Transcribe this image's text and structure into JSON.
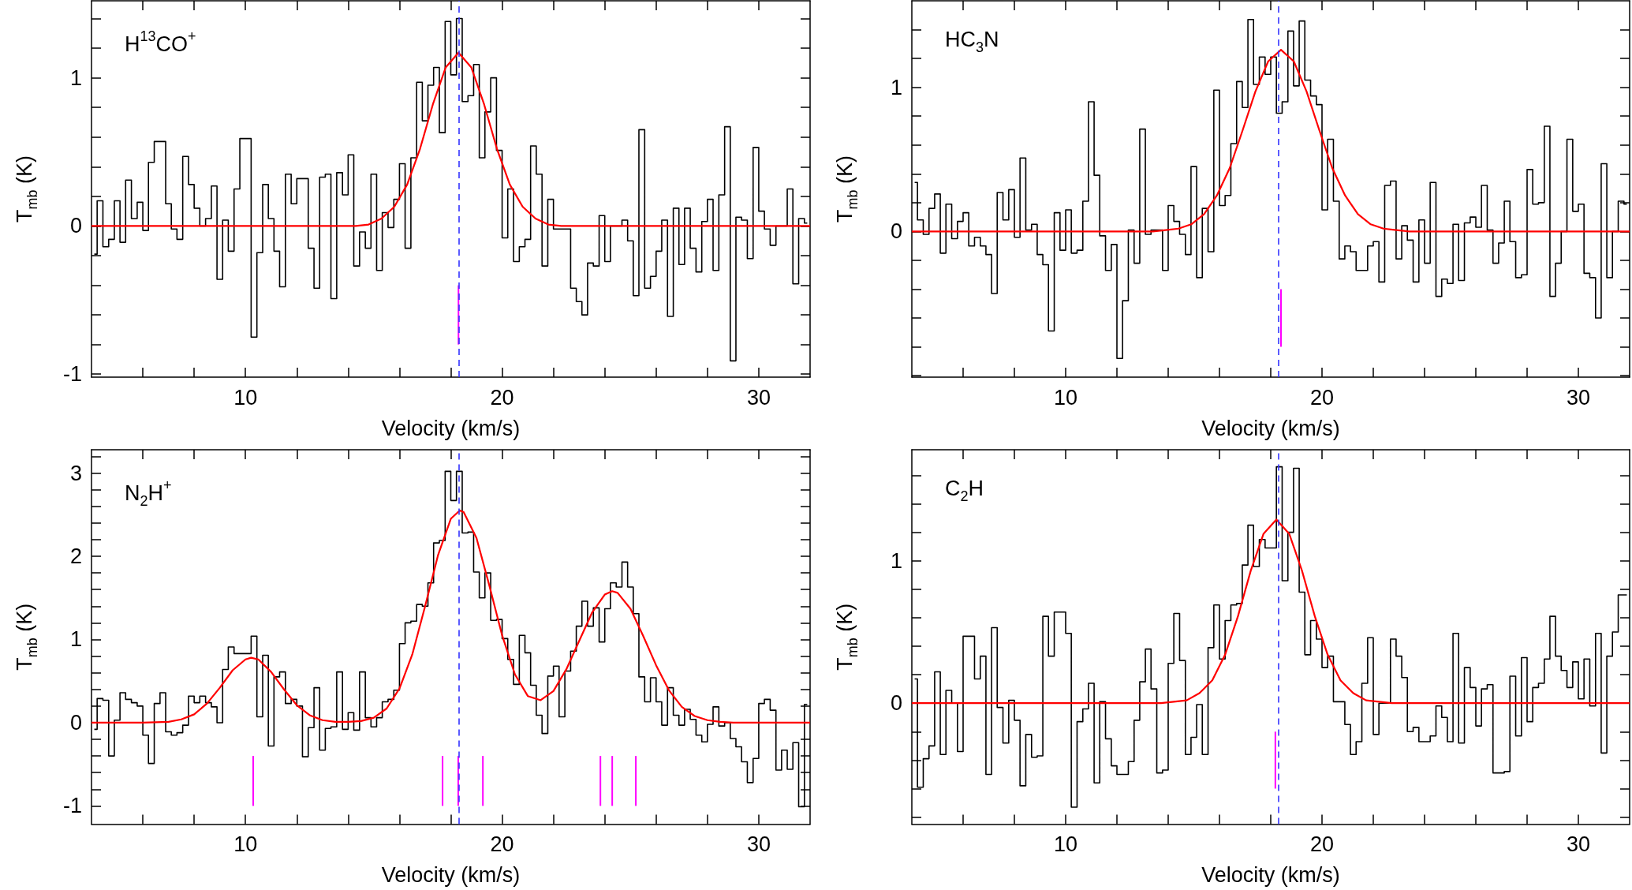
{
  "chart_data": [
    {
      "type": "step",
      "xlabel": "Velocity (km/s)",
      "ylabel": "T$_{mb}$ (K)",
      "annotations": [
        "H$^{13}$CO$^{+}$"
      ],
      "xlim": [
        4,
        32
      ],
      "ylim": [
        -1.02,
        1.52
      ],
      "xticks": [
        {
          "value": 6,
          "label": null
        },
        {
          "value": 8,
          "label": null
        },
        10,
        {
          "value": 12,
          "label": null
        },
        {
          "value": 14,
          "label": null
        },
        {
          "value": 16,
          "label": null
        },
        {
          "value": 18,
          "label": null
        },
        20,
        {
          "value": 22,
          "label": null
        },
        {
          "value": 24,
          "label": null
        },
        {
          "value": 26,
          "label": null
        },
        {
          "value": 28,
          "label": null
        },
        30
      ],
      "yticks": [
        -1,
        {
          "value": -0.8,
          "label": null
        },
        {
          "value": -0.6,
          "label": null
        },
        {
          "value": -0.4,
          "label": null
        },
        {
          "value": -0.2,
          "label": null
        },
        0,
        {
          "value": 0.2,
          "label": null
        },
        {
          "value": 0.4,
          "label": null
        },
        {
          "value": 0.6,
          "label": null
        },
        {
          "value": 0.8,
          "label": null
        },
        1,
        {
          "value": 1.2,
          "label": null
        },
        {
          "value": 1.4,
          "label": null
        }
      ],
      "ref_lines": [
        {
          "axis": "x",
          "value": 18.3,
          "color": "#3333ff",
          "line_style": "dashed"
        }
      ],
      "series": [
        {
          "color": "#000000",
          "x": [
            4.11,
            4.33,
            4.56,
            4.78,
            5.0,
            5.22,
            5.44,
            5.67,
            5.89,
            6.11,
            6.33,
            6.56,
            6.78,
            7.0,
            7.22,
            7.44,
            7.67,
            7.89,
            8.11,
            8.33,
            8.56,
            8.78,
            9.0,
            9.22,
            9.44,
            9.67,
            9.89,
            10.11,
            10.33,
            10.56,
            10.78,
            11.0,
            11.22,
            11.44,
            11.67,
            11.89,
            12.11,
            12.33,
            12.56,
            12.78,
            13.0,
            13.22,
            13.44,
            13.67,
            13.89,
            14.11,
            14.33,
            14.56,
            14.78,
            15.0,
            15.22,
            15.44,
            15.67,
            15.89,
            16.11,
            16.33,
            16.56,
            16.78,
            17.0,
            17.22,
            17.44,
            17.67,
            17.89,
            18.11,
            18.33,
            18.56,
            18.78,
            19.0,
            19.22,
            19.44,
            19.67,
            19.89,
            20.11,
            20.33,
            20.56,
            20.78,
            21.0,
            21.22,
            21.44,
            21.67,
            21.89,
            22.11,
            22.33,
            22.56,
            22.78,
            23.0,
            23.22,
            23.44,
            23.67,
            23.89,
            24.11,
            24.33,
            24.56,
            24.78,
            25.0,
            25.22,
            25.44,
            25.67,
            25.89,
            26.11,
            26.33,
            26.56,
            26.78,
            27.0,
            27.22,
            27.44,
            27.67,
            27.89,
            28.11,
            28.33,
            28.56,
            28.78,
            29.0,
            29.22,
            29.44,
            29.67,
            29.89,
            30.11,
            30.33,
            30.56,
            30.78,
            31.0,
            31.22,
            31.44,
            31.67,
            31.89
          ],
          "values": [
            -0.19,
            0.17,
            -0.14,
            -0.09,
            0.17,
            -0.11,
            0.31,
            0.05,
            0.16,
            -0.03,
            0.43,
            0.57,
            0.57,
            0.15,
            -0.02,
            -0.09,
            0.47,
            0.28,
            0.12,
            0,
            0.05,
            0.27,
            -0.36,
            0.04,
            -0.17,
            0.25,
            0.59,
            0.59,
            -0.75,
            -0.18,
            0.28,
            0.05,
            -0.17,
            -0.41,
            0.35,
            0.15,
            0.32,
            0.32,
            -0.15,
            -0.42,
            0.33,
            0.35,
            -0.49,
            0.36,
            0.21,
            0.48,
            -0.27,
            -0.04,
            -0.15,
            0.35,
            -0.3,
            0.09,
            -0.01,
            0.18,
            0.42,
            -0.15,
            0.46,
            0.97,
            0.71,
            0.95,
            1.07,
            0.63,
            1.38,
            1.02,
            1.4,
            0.84,
            0.88,
            1.09,
            0.46,
            0.77,
            1.0,
            0.51,
            -0.08,
            0.25,
            -0.24,
            -0.14,
            -0.09,
            0.54,
            0.35,
            -0.27,
            0.18,
            -0.02,
            -0.02,
            -0.02,
            -0.42,
            -0.51,
            -0.6,
            -0.25,
            -0.27,
            0.07,
            -0.24,
            0,
            0,
            0.04,
            -0.1,
            -0.47,
            0.65,
            -0.42,
            -0.34,
            -0.17,
            0.04,
            -0.61,
            0.12,
            -0.26,
            0.12,
            -0.15,
            -0.31,
            0.03,
            0.18,
            -0.3,
            0.21,
            0.67,
            -0.91,
            0.06,
            0.04,
            -0.22,
            0.53,
            0.1,
            -0.02,
            -0.13,
            0,
            0,
            0.25,
            -0.39,
            0.05,
            0.02
          ]
        },
        {
          "type": "line",
          "color": "#ff0000",
          "x": [
            4,
            14.3,
            14.8,
            15.3,
            15.8,
            16.3,
            16.8,
            17.3,
            17.8,
            18.3,
            18.8,
            19.3,
            19.8,
            20.3,
            20.8,
            21.3,
            21.8,
            22.3,
            32
          ],
          "values": [
            0,
            0,
            0.01,
            0.05,
            0.13,
            0.28,
            0.52,
            0.82,
            1.07,
            1.17,
            1.07,
            0.82,
            0.52,
            0.28,
            0.13,
            0.05,
            0.01,
            0,
            0
          ]
        },
        {
          "type": "bar",
          "color": "#ff00ff",
          "x": [
            18.3
          ],
          "base": [
            -0.8
          ],
          "values": [
            0.4
          ]
        }
      ]
    },
    {
      "type": "step",
      "xlabel": "Velocity (km/s)",
      "ylabel": "T$_{mb}$ (K)",
      "annotations": [
        "HC$_{3}$N"
      ],
      "xlim": [
        4,
        32
      ],
      "ylim": [
        -1.01,
        1.6
      ],
      "xticks": [
        {
          "value": 6,
          "label": null
        },
        {
          "value": 8,
          "label": null
        },
        10,
        {
          "value": 12,
          "label": null
        },
        {
          "value": 14,
          "label": null
        },
        {
          "value": 16,
          "label": null
        },
        {
          "value": 18,
          "label": null
        },
        20,
        {
          "value": 22,
          "label": null
        },
        {
          "value": 24,
          "label": null
        },
        {
          "value": 26,
          "label": null
        },
        {
          "value": 28,
          "label": null
        },
        30
      ],
      "yticks": [
        {
          "value": -1,
          "label": null
        },
        {
          "value": -0.8,
          "label": null
        },
        {
          "value": -0.6,
          "label": null
        },
        {
          "value": -0.4,
          "label": null
        },
        {
          "value": -0.2,
          "label": null
        },
        0,
        {
          "value": 0.2,
          "label": null
        },
        {
          "value": 0.4,
          "label": null
        },
        {
          "value": 0.6,
          "label": null
        },
        {
          "value": 0.8,
          "label": null
        },
        1,
        {
          "value": 1.2,
          "label": null
        },
        {
          "value": 1.4,
          "label": null
        }
      ],
      "ref_lines": [
        {
          "axis": "x",
          "value": 18.3,
          "color": "#3333ff",
          "line_style": "dashed"
        }
      ],
      "series": [
        {
          "color": "#000000",
          "x": [
            4.11,
            4.33,
            4.56,
            4.78,
            5.0,
            5.22,
            5.44,
            5.67,
            5.89,
            6.11,
            6.33,
            6.56,
            6.78,
            7.0,
            7.22,
            7.44,
            7.67,
            7.89,
            8.11,
            8.33,
            8.56,
            8.78,
            9.0,
            9.22,
            9.44,
            9.67,
            9.89,
            10.11,
            10.33,
            10.56,
            10.78,
            11.0,
            11.22,
            11.44,
            11.67,
            11.89,
            12.11,
            12.33,
            12.56,
            12.78,
            13.0,
            13.22,
            13.44,
            13.67,
            13.89,
            14.11,
            14.33,
            14.56,
            14.78,
            15.0,
            15.22,
            15.44,
            15.67,
            15.89,
            16.11,
            16.33,
            16.56,
            16.78,
            17.0,
            17.22,
            17.44,
            17.67,
            17.89,
            18.11,
            18.33,
            18.56,
            18.78,
            19.0,
            19.22,
            19.44,
            19.67,
            19.89,
            20.11,
            20.33,
            20.56,
            20.78,
            21.0,
            21.22,
            21.44,
            21.67,
            21.89,
            22.11,
            22.33,
            22.56,
            22.78,
            23.0,
            23.22,
            23.44,
            23.67,
            23.89,
            24.11,
            24.33,
            24.56,
            24.78,
            25.0,
            25.22,
            25.44,
            25.67,
            25.89,
            26.11,
            26.33,
            26.56,
            26.78,
            27.0,
            27.22,
            27.44,
            27.67,
            27.89,
            28.11,
            28.33,
            28.56,
            28.78,
            29.0,
            29.22,
            29.44,
            29.67,
            29.89,
            30.11,
            30.33,
            30.56,
            30.78,
            31.0,
            31.22,
            31.44,
            31.67,
            31.89
          ],
          "values": [
            0.34,
            0.08,
            -0.02,
            0.16,
            0.26,
            -0.15,
            0.19,
            -0.05,
            0.07,
            0.13,
            -0.1,
            -0.04,
            -0.1,
            -0.16,
            -0.43,
            0.27,
            0.08,
            0.29,
            -0.04,
            0.51,
            0.01,
            0.05,
            -0.16,
            -0.23,
            -0.69,
            0.13,
            -0.13,
            0.15,
            -0.15,
            -0.13,
            0.21,
            0.9,
            0.39,
            -0.03,
            -0.27,
            -0.09,
            -0.88,
            -0.48,
            0.01,
            -0.22,
            0.71,
            -0.02,
            0.01,
            0.01,
            -0.27,
            0.18,
            0.07,
            -0.02,
            -0.16,
            0.45,
            -0.32,
            0.16,
            -0.14,
            0.98,
            0.18,
            0.25,
            0.61,
            1.04,
            0.86,
            1.47,
            1.02,
            1.21,
            1.09,
            1.21,
            0.82,
            0.9,
            1.39,
            1.01,
            1.46,
            1.05,
            0.94,
            0.88,
            0.15,
            0.64,
            0.21,
            -0.19,
            -0.1,
            -0.14,
            -0.27,
            -0.27,
            -0.1,
            -0.07,
            -0.35,
            0.32,
            0.35,
            -0.19,
            0.04,
            -0.06,
            -0.35,
            0.08,
            -0.22,
            0.34,
            -0.45,
            -0.33,
            -0.36,
            0.05,
            -0.34,
            0.06,
            0.1,
            0.03,
            0.32,
            0.01,
            -0.22,
            -0.08,
            0.21,
            -0.07,
            -0.32,
            -0.3,
            0.43,
            0.19,
            0.2,
            0.73,
            -0.45,
            -0.22,
            0.0,
            0.64,
            0.14,
            0.19,
            -0.29,
            -0.32,
            -0.6,
            0.47,
            -0.32,
            0.0,
            0.21,
            0.19
          ]
        },
        {
          "type": "line",
          "color": "#ff0000",
          "x": [
            4,
            13.4,
            13.9,
            14.4,
            14.9,
            15.4,
            15.9,
            16.4,
            16.9,
            17.4,
            17.9,
            18.4,
            18.9,
            19.4,
            19.9,
            20.4,
            20.9,
            21.4,
            21.9,
            22.4,
            22.9,
            23.4,
            32
          ],
          "values": [
            0,
            0,
            0.01,
            0.02,
            0.05,
            0.12,
            0.25,
            0.44,
            0.7,
            0.97,
            1.18,
            1.26,
            1.18,
            0.97,
            0.7,
            0.44,
            0.25,
            0.12,
            0.05,
            0.02,
            0.01,
            0,
            0
          ]
        },
        {
          "type": "bar",
          "color": "#ff00ff",
          "x": [
            18.4
          ],
          "base": [
            -0.8
          ],
          "values": [
            0.4
          ]
        }
      ]
    },
    {
      "type": "step",
      "xlabel": "Velocity (km/s)",
      "ylabel": "T$_{mb}$ (K)",
      "annotations": [
        "N$_{2}$H$^{+}$"
      ],
      "xlim": [
        4,
        32
      ],
      "ylim": [
        -1.22,
        3.28
      ],
      "xticks": [
        {
          "value": 6,
          "label": null
        },
        {
          "value": 8,
          "label": null
        },
        10,
        {
          "value": 12,
          "label": null
        },
        {
          "value": 14,
          "label": null
        },
        {
          "value": 16,
          "label": null
        },
        {
          "value": 18,
          "label": null
        },
        20,
        {
          "value": 22,
          "label": null
        },
        {
          "value": 24,
          "label": null
        },
        {
          "value": 26,
          "label": null
        },
        {
          "value": 28,
          "label": null
        },
        30
      ],
      "yticks": [
        -1,
        {
          "value": -0.8,
          "label": null
        },
        {
          "value": -0.6,
          "label": null
        },
        {
          "value": -0.4,
          "label": null
        },
        {
          "value": -0.2,
          "label": null
        },
        0,
        {
          "value": 0.2,
          "label": null
        },
        {
          "value": 0.4,
          "label": null
        },
        {
          "value": 0.6,
          "label": null
        },
        {
          "value": 0.8,
          "label": null
        },
        1,
        {
          "value": 1.2,
          "label": null
        },
        {
          "value": 1.4,
          "label": null
        },
        {
          "value": 1.6,
          "label": null
        },
        {
          "value": 1.8,
          "label": null
        },
        2,
        {
          "value": 2.2,
          "label": null
        },
        {
          "value": 2.4,
          "label": null
        },
        {
          "value": 2.6,
          "label": null
        },
        {
          "value": 2.8,
          "label": null
        },
        3,
        {
          "value": 3.2,
          "label": null
        }
      ],
      "ref_lines": [
        {
          "axis": "x",
          "value": 18.3,
          "color": "#3333ff",
          "line_style": "dashed"
        }
      ],
      "series": [
        {
          "color": "#000000",
          "x": [
            4.11,
            4.33,
            4.56,
            4.78,
            5.0,
            5.22,
            5.44,
            5.67,
            5.89,
            6.11,
            6.33,
            6.56,
            6.78,
            7.0,
            7.22,
            7.44,
            7.67,
            7.89,
            8.11,
            8.33,
            8.56,
            8.78,
            9.0,
            9.22,
            9.44,
            9.67,
            9.89,
            10.11,
            10.33,
            10.56,
            10.78,
            11.0,
            11.22,
            11.44,
            11.67,
            11.89,
            12.11,
            12.33,
            12.56,
            12.78,
            13.0,
            13.22,
            13.44,
            13.67,
            13.89,
            14.11,
            14.33,
            14.56,
            14.78,
            15.0,
            15.22,
            15.44,
            15.67,
            15.89,
            16.11,
            16.33,
            16.56,
            16.78,
            17.0,
            17.22,
            17.44,
            17.67,
            17.89,
            18.11,
            18.33,
            18.56,
            18.78,
            19.0,
            19.22,
            19.44,
            19.67,
            19.89,
            20.11,
            20.33,
            20.56,
            20.78,
            21.0,
            21.22,
            21.44,
            21.67,
            21.89,
            22.11,
            22.33,
            22.56,
            22.78,
            23.0,
            23.22,
            23.44,
            23.67,
            23.89,
            24.11,
            24.33,
            24.56,
            24.78,
            25.0,
            25.22,
            25.44,
            25.67,
            25.89,
            26.11,
            26.33,
            26.56,
            26.78,
            27.0,
            27.22,
            27.44,
            27.67,
            27.89,
            28.11,
            28.33,
            28.56,
            28.78,
            29.0,
            29.22,
            29.44,
            29.67,
            29.89,
            30.11,
            30.33,
            30.56,
            30.78,
            31.0,
            31.22,
            31.44,
            31.67,
            31.89
          ],
          "values": [
            -0.08,
            0.29,
            0.27,
            -0.4,
            0.03,
            0.36,
            0.28,
            0.24,
            0.2,
            -0.15,
            -0.49,
            0.23,
            0.36,
            -0.11,
            -0.15,
            -0.12,
            -0.03,
            0.32,
            0.24,
            0.32,
            0.24,
            0.19,
            0.0,
            0.64,
            0.91,
            0.83,
            0.83,
            0.83,
            1.04,
            0.07,
            0.81,
            -0.28,
            0.55,
            0.61,
            0.23,
            0.28,
            0.2,
            -0.41,
            -0.06,
            0.42,
            -0.33,
            -0.07,
            -0.05,
            0.61,
            -0.08,
            0.12,
            -0.09,
            0.61,
            0.06,
            -0.05,
            0.06,
            0.25,
            0.28,
            0.39,
            0.95,
            1.2,
            1.22,
            1.42,
            1.4,
            1.68,
            2.16,
            2.19,
            3.02,
            2.67,
            3.02,
            2.28,
            2.29,
            1.81,
            1.5,
            1.8,
            1.23,
            1.24,
            1.01,
            0.76,
            0.46,
            1.05,
            0.84,
            0.45,
            0.09,
            -0.13,
            0.56,
            0.68,
            0.07,
            0.62,
            0.86,
            1.16,
            1.46,
            1.16,
            1.38,
            0.97,
            1.37,
            1.68,
            1.63,
            1.93,
            1.63,
            1.31,
            0.55,
            0.25,
            0.54,
            0.25,
            -0.03,
            0.42,
            0.09,
            -0.03,
            0.16,
            0.04,
            -0.15,
            -0.23,
            -0.02,
            0.19,
            -0.04,
            0.0,
            -0.19,
            -0.29,
            -0.47,
            -0.72,
            -0.43,
            0.23,
            0.28,
            0.15,
            -0.57,
            -0.33,
            -0.56,
            -0.24,
            -1.01,
            0.22
          ]
        },
        {
          "type": "line",
          "color": "#ff0000",
          "x": [
            4,
            6,
            7,
            7.5,
            8,
            8.5,
            9,
            9.5,
            10,
            10.22,
            10.5,
            11,
            11.5,
            12,
            12.5,
            13,
            13.5,
            14,
            14.5,
            15,
            15.5,
            16,
            16.5,
            17,
            17.5,
            18,
            18.35,
            18.5,
            19,
            19.5,
            20,
            20.5,
            21,
            21.5,
            22,
            22.5,
            23,
            23.5,
            24,
            24.29,
            24.5,
            25,
            25.5,
            26,
            26.5,
            27,
            27.5,
            28,
            28.5,
            29,
            32
          ],
          "values": [
            0,
            0,
            0.01,
            0.04,
            0.1,
            0.23,
            0.42,
            0.63,
            0.76,
            0.78,
            0.76,
            0.61,
            0.4,
            0.21,
            0.09,
            0.03,
            0.01,
            0.01,
            0.02,
            0.06,
            0.17,
            0.41,
            0.82,
            1.4,
            2.01,
            2.45,
            2.55,
            2.53,
            2.22,
            1.65,
            1.05,
            0.58,
            0.32,
            0.27,
            0.38,
            0.64,
            0.98,
            1.32,
            1.54,
            1.58,
            1.56,
            1.37,
            1.04,
            0.69,
            0.39,
            0.19,
            0.08,
            0.03,
            0.01,
            0,
            0
          ]
        },
        {
          "type": "bar",
          "color": "#ff00ff",
          "x": [
            10.3,
            17.68,
            18.29,
            19.25,
            23.83,
            24.29,
            25.21
          ],
          "base": [
            -1,
            -1,
            -1,
            -1,
            -1,
            -1,
            -1
          ],
          "values": [
            0.6,
            0.6,
            0.6,
            0.6,
            0.6,
            0.6,
            0.6
          ]
        }
      ]
    },
    {
      "type": "step",
      "xlabel": "Velocity (km/s)",
      "ylabel": "T$_{mb}$ (K)",
      "annotations": [
        "C$_{2}$H"
      ],
      "xlim": [
        4,
        32
      ],
      "ylim": [
        -0.85,
        1.78
      ],
      "xticks": [
        {
          "value": 6,
          "label": null
        },
        {
          "value": 8,
          "label": null
        },
        10,
        {
          "value": 12,
          "label": null
        },
        {
          "value": 14,
          "label": null
        },
        {
          "value": 16,
          "label": null
        },
        {
          "value": 18,
          "label": null
        },
        20,
        {
          "value": 22,
          "label": null
        },
        {
          "value": 24,
          "label": null
        },
        {
          "value": 26,
          "label": null
        },
        {
          "value": 28,
          "label": null
        },
        30
      ],
      "yticks": [
        {
          "value": -0.8,
          "label": null
        },
        {
          "value": -0.6,
          "label": null
        },
        {
          "value": -0.4,
          "label": null
        },
        {
          "value": -0.2,
          "label": null
        },
        0,
        {
          "value": 0.2,
          "label": null
        },
        {
          "value": 0.4,
          "label": null
        },
        {
          "value": 0.6,
          "label": null
        },
        {
          "value": 0.8,
          "label": null
        },
        1,
        {
          "value": 1.2,
          "label": null
        },
        {
          "value": 1.4,
          "label": null
        },
        {
          "value": 1.6,
          "label": null
        }
      ],
      "ref_lines": [
        {
          "axis": "x",
          "value": 18.3,
          "color": "#3333ff",
          "line_style": "dashed"
        }
      ],
      "series": [
        {
          "color": "#000000",
          "x": [
            4.11,
            4.33,
            4.56,
            4.78,
            5.0,
            5.22,
            5.44,
            5.67,
            5.89,
            6.11,
            6.33,
            6.56,
            6.78,
            7.0,
            7.22,
            7.44,
            7.67,
            7.89,
            8.11,
            8.33,
            8.56,
            8.78,
            9.0,
            9.22,
            9.44,
            9.67,
            9.89,
            10.11,
            10.33,
            10.56,
            10.78,
            11.0,
            11.22,
            11.44,
            11.67,
            11.89,
            12.11,
            12.33,
            12.56,
            12.78,
            13.0,
            13.22,
            13.44,
            13.67,
            13.89,
            14.11,
            14.33,
            14.56,
            14.78,
            15.0,
            15.22,
            15.44,
            15.67,
            15.89,
            16.11,
            16.33,
            16.56,
            16.78,
            17.0,
            17.22,
            17.44,
            17.67,
            17.89,
            18.11,
            18.33,
            18.56,
            18.78,
            19.0,
            19.22,
            19.44,
            19.67,
            19.89,
            20.11,
            20.33,
            20.56,
            20.78,
            21.0,
            21.22,
            21.44,
            21.67,
            21.89,
            22.11,
            22.33,
            22.56,
            22.78,
            23.0,
            23.22,
            23.44,
            23.67,
            23.89,
            24.11,
            24.33,
            24.56,
            24.78,
            25.0,
            25.22,
            25.44,
            25.67,
            25.89,
            26.11,
            26.33,
            26.56,
            26.78,
            27.0,
            27.22,
            27.44,
            27.67,
            27.89,
            28.11,
            28.33,
            28.56,
            28.78,
            29.0,
            29.22,
            29.44,
            29.67,
            29.89,
            30.11,
            30.33,
            30.56,
            30.78,
            31.0,
            31.22,
            31.44,
            31.67,
            31.89
          ],
          "values": [
            0.17,
            -0.59,
            -0.39,
            -0.3,
            0.22,
            -0.36,
            0.09,
            0.0,
            -0.34,
            0.47,
            0.47,
            0.17,
            0.33,
            -0.5,
            0.53,
            -0.03,
            -0.28,
            0.02,
            -0.12,
            -0.58,
            -0.22,
            -0.38,
            -0.37,
            0.61,
            0.33,
            0.64,
            0.64,
            0.49,
            -0.73,
            -0.13,
            -0.04,
            0.14,
            -0.56,
            0.01,
            -0.25,
            -0.44,
            -0.5,
            -0.5,
            -0.41,
            -0.12,
            0.15,
            0.38,
            0.1,
            -0.49,
            -0.47,
            0.28,
            0.63,
            0.3,
            -0.36,
            -0.24,
            -0.01,
            -0.36,
            0.39,
            0.69,
            0.31,
            0.58,
            0.69,
            0.7,
            0.97,
            1.25,
            0.96,
            1.15,
            1.09,
            1.09,
            1.66,
            0.86,
            1.2,
            1.65,
            0.78,
            0.34,
            0.58,
            0.45,
            0.25,
            0.33,
            0.01,
            0.01,
            -0.15,
            -0.36,
            -0.27,
            0.14,
            0.46,
            -0.22,
            0,
            0,
            0.45,
            0.33,
            0.18,
            -0.2,
            -0.17,
            -0.27,
            -0.27,
            -0.23,
            -0.02,
            -0.1,
            -0.27,
            0.49,
            -0.28,
            0.25,
            0.11,
            -0.16,
            0.1,
            0.13,
            -0.49,
            -0.49,
            -0.48,
            0.19,
            -0.23,
            0.32,
            -0.13,
            0.11,
            0.14,
            0.31,
            0.61,
            0.33,
            0.23,
            0.11,
            0.29,
            0.03,
            0.31,
            -0.02,
            0.49,
            -0.35,
            0.33,
            0.5,
            0.76,
            0.76
          ]
        },
        {
          "type": "line",
          "color": "#ff0000",
          "x": [
            4,
            13.72,
            14.22,
            14.72,
            15.22,
            15.72,
            16.22,
            16.72,
            17.22,
            17.72,
            18.22,
            18.72,
            19.22,
            19.72,
            20.22,
            20.72,
            21.22,
            21.72,
            22.22,
            22.72,
            32
          ],
          "values": [
            0,
            0,
            0.01,
            0.02,
            0.07,
            0.16,
            0.34,
            0.61,
            0.93,
            1.19,
            1.29,
            1.19,
            0.93,
            0.61,
            0.34,
            0.16,
            0.07,
            0.02,
            0.01,
            0,
            0
          ]
        },
        {
          "type": "bar",
          "color": "#ff00ff",
          "x": [
            18.18
          ],
          "base": [
            -0.6
          ],
          "values": [
            0.4
          ]
        }
      ]
    }
  ]
}
